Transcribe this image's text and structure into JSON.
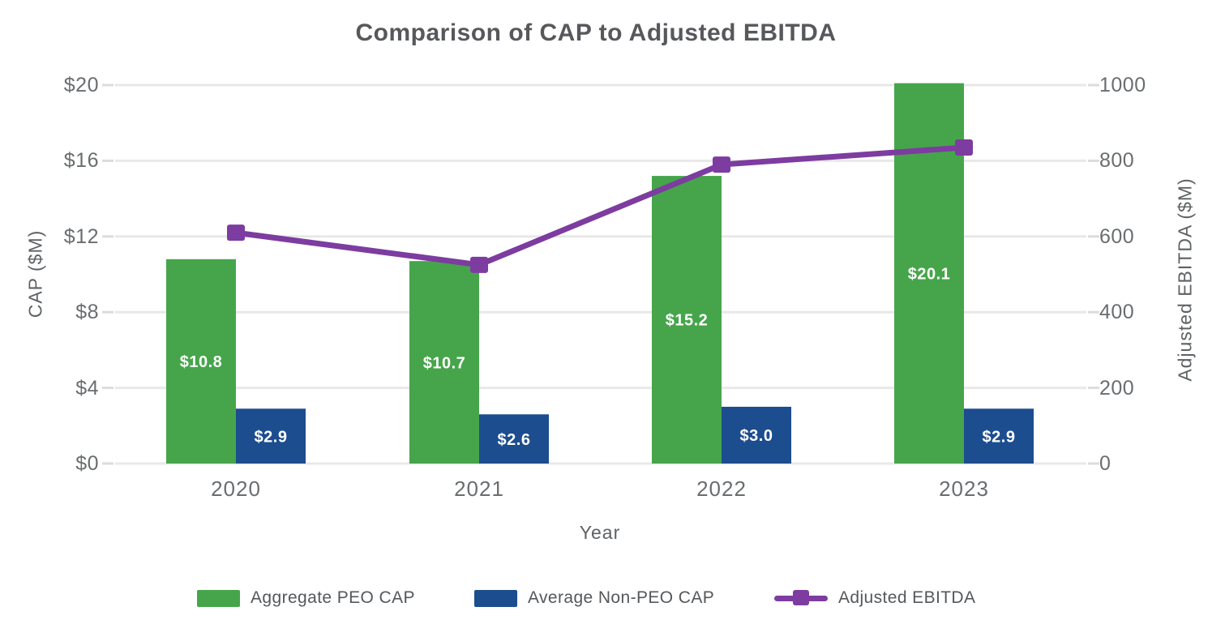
{
  "title": "Comparison of CAP to Adjusted EBITDA",
  "chart_data": {
    "type": "combo-grouped-bar-line",
    "title": "Comparison of CAP to Adjusted EBITDA",
    "categories": [
      "2020",
      "2021",
      "2022",
      "2023"
    ],
    "xlabel": "Year",
    "left_axis": {
      "label": "CAP ($M)",
      "tick_labels": [
        "$0",
        "$4",
        "$8",
        "$12",
        "$16",
        "$20"
      ],
      "tick_values": [
        0,
        4,
        8,
        12,
        16,
        20
      ],
      "range": [
        0,
        20
      ]
    },
    "right_axis": {
      "label": "Adjusted EBITDA ($M)",
      "tick_labels": [
        "0",
        "200",
        "400",
        "600",
        "800",
        "1000"
      ],
      "tick_values": [
        0,
        200,
        400,
        600,
        800,
        1000
      ],
      "range": [
        0,
        1000
      ]
    },
    "series": [
      {
        "name": "Aggregate PEO CAP",
        "type": "bar",
        "axis": "left",
        "color": "#46a54b",
        "values": [
          10.8,
          10.7,
          15.2,
          20.1
        ],
        "data_labels": [
          "$10.8",
          "$10.7",
          "$15.2",
          "$20.1"
        ]
      },
      {
        "name": "Average Non-PEO CAP",
        "type": "bar",
        "axis": "left",
        "color": "#1c4d8f",
        "values": [
          2.9,
          2.6,
          3.0,
          2.9
        ],
        "data_labels": [
          "$2.9",
          "$2.6",
          "$3.0",
          "$2.9"
        ]
      },
      {
        "name": "Adjusted EBITDA",
        "type": "line",
        "axis": "right",
        "marker": "square",
        "color": "#7d3ca0",
        "values": [
          610,
          525,
          790,
          835
        ]
      }
    ],
    "legend_position": "bottom",
    "grid": "horizontal",
    "colors": {
      "gridline": "#e8e8e8",
      "tick_dash": "#dcdcdc",
      "axis_text": "#6a6d6f",
      "title_text": "#57585b",
      "bar_label_text": "#ffffff"
    }
  }
}
